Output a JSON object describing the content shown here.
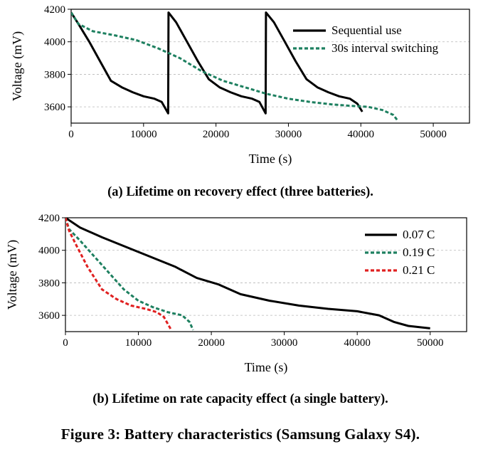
{
  "figure_caption": "Figure 3: Battery characteristics (Samsung Galaxy S4).",
  "chart_data": [
    {
      "type": "line",
      "caption": "(a) Lifetime on recovery effect (three batteries).",
      "xlabel": "Time (s)",
      "ylabel": "Voltage (mV)",
      "xlim": [
        0,
        55000
      ],
      "ylim": [
        3500,
        4200
      ],
      "xticks": [
        0,
        10000,
        20000,
        30000,
        40000,
        50000
      ],
      "yticks": [
        3600,
        3800,
        4000,
        4200
      ],
      "grid": true,
      "legend_position": "top-right",
      "series": [
        {
          "name": "Sequential use",
          "color": "#000000",
          "style": "solid",
          "points": [
            [
              0,
              4180
            ],
            [
              1000,
              4110
            ],
            [
              2500,
              4000
            ],
            [
              4000,
              3880
            ],
            [
              5500,
              3760
            ],
            [
              7000,
              3720
            ],
            [
              8500,
              3690
            ],
            [
              10000,
              3665
            ],
            [
              11500,
              3650
            ],
            [
              12500,
              3630
            ],
            [
              13400,
              3560
            ],
            [
              13450,
              4180
            ],
            [
              14500,
              4120
            ],
            [
              16000,
              4000
            ],
            [
              17500,
              3880
            ],
            [
              19000,
              3770
            ],
            [
              20500,
              3720
            ],
            [
              22000,
              3690
            ],
            [
              23500,
              3665
            ],
            [
              25000,
              3650
            ],
            [
              26000,
              3630
            ],
            [
              26850,
              3560
            ],
            [
              26900,
              4180
            ],
            [
              28000,
              4120
            ],
            [
              29500,
              4000
            ],
            [
              31000,
              3880
            ],
            [
              32500,
              3770
            ],
            [
              34000,
              3720
            ],
            [
              35500,
              3690
            ],
            [
              37000,
              3665
            ],
            [
              38500,
              3650
            ],
            [
              39500,
              3620
            ],
            [
              40200,
              3570
            ]
          ]
        },
        {
          "name": "30s interval switching",
          "color": "#1e8060",
          "style": "dashed",
          "points": [
            [
              0,
              4180
            ],
            [
              1000,
              4110
            ],
            [
              3000,
              4065
            ],
            [
              6000,
              4040
            ],
            [
              9000,
              4010
            ],
            [
              12000,
              3960
            ],
            [
              15000,
              3900
            ],
            [
              18000,
              3820
            ],
            [
              21000,
              3760
            ],
            [
              24000,
              3720
            ],
            [
              27000,
              3680
            ],
            [
              30000,
              3650
            ],
            [
              33000,
              3630
            ],
            [
              36000,
              3615
            ],
            [
              39000,
              3605
            ],
            [
              41000,
              3600
            ],
            [
              43000,
              3580
            ],
            [
              44500,
              3550
            ],
            [
              45000,
              3520
            ]
          ]
        }
      ]
    },
    {
      "type": "line",
      "caption": "(b) Lifetime on rate capacity effect (a single battery).",
      "xlabel": "Time (s)",
      "ylabel": "Voltage (mV)",
      "xlim": [
        0,
        55000
      ],
      "ylim": [
        3500,
        4200
      ],
      "xticks": [
        0,
        10000,
        20000,
        30000,
        40000,
        50000
      ],
      "yticks": [
        3600,
        3800,
        4000,
        4200
      ],
      "grid": true,
      "legend_position": "top-right",
      "series": [
        {
          "name": "0.07 C",
          "color": "#000000",
          "style": "solid",
          "points": [
            [
              0,
              4200
            ],
            [
              2000,
              4140
            ],
            [
              5000,
              4080
            ],
            [
              10000,
              3990
            ],
            [
              15000,
              3900
            ],
            [
              18000,
              3830
            ],
            [
              21000,
              3790
            ],
            [
              24000,
              3730
            ],
            [
              28000,
              3690
            ],
            [
              32000,
              3660
            ],
            [
              36000,
              3640
            ],
            [
              40000,
              3625
            ],
            [
              43000,
              3600
            ],
            [
              45000,
              3560
            ],
            [
              47000,
              3535
            ],
            [
              50000,
              3520
            ]
          ]
        },
        {
          "name": "0.19 C",
          "color": "#1e8060",
          "style": "dashed",
          "points": [
            [
              0,
              4200
            ],
            [
              500,
              4130
            ],
            [
              2000,
              4060
            ],
            [
              4000,
              3960
            ],
            [
              6000,
              3860
            ],
            [
              8000,
              3760
            ],
            [
              10000,
              3690
            ],
            [
              12000,
              3650
            ],
            [
              14000,
              3620
            ],
            [
              16000,
              3600
            ],
            [
              17000,
              3560
            ],
            [
              17500,
              3510
            ]
          ]
        },
        {
          "name": "0.21 C",
          "color": "#e02020",
          "style": "dashed",
          "points": [
            [
              0,
              4200
            ],
            [
              500,
              4120
            ],
            [
              1500,
              4030
            ],
            [
              3000,
              3900
            ],
            [
              5000,
              3760
            ],
            [
              7000,
              3700
            ],
            [
              9000,
              3660
            ],
            [
              11000,
              3640
            ],
            [
              12500,
              3620
            ],
            [
              13500,
              3590
            ],
            [
              14500,
              3510
            ]
          ]
        }
      ]
    }
  ]
}
